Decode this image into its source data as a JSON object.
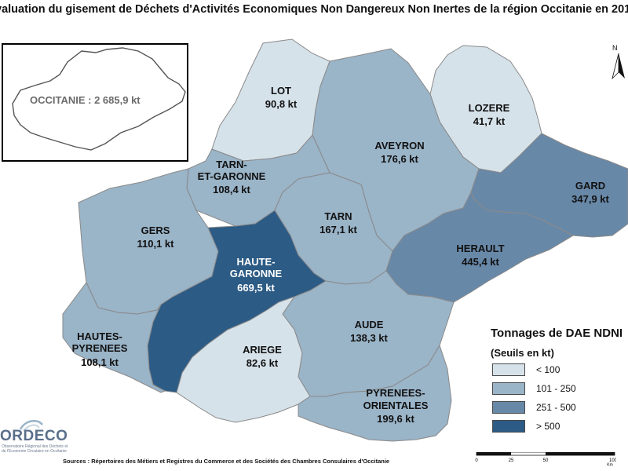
{
  "title": "valuation du gisement de Déchets d'Activités Economiques Non Dangereux Non Inertes de la région Occitanie en 201",
  "inset": {
    "label": "OCCITANIE : 2 685,9 kt"
  },
  "colors": {
    "lt100": "#d6e2ea",
    "r101_250": "#9ab4c8",
    "r251_500": "#6888a8",
    "gt500": "#2c5b85",
    "border": "#8a8a8a"
  },
  "departments": [
    {
      "name": "LOT",
      "value": "90,8 kt",
      "class": "lt100"
    },
    {
      "name": "LOZERE",
      "value": "41,7 kt",
      "class": "lt100"
    },
    {
      "name": "AVEYRON",
      "value": "176,6 kt",
      "class": "r101_250"
    },
    {
      "name_line1": "TARN-",
      "name_line2": "ET-GARONNE",
      "value": "108,4 kt",
      "class": "r101_250"
    },
    {
      "name": "GARD",
      "value": "347,9 kt",
      "class": "r251_500"
    },
    {
      "name": "GERS",
      "value": "110,1 kt",
      "class": "r101_250"
    },
    {
      "name": "TARN",
      "value": "167,1 kt",
      "class": "r101_250"
    },
    {
      "name_line1": "HAUTE-",
      "name_line2": "GARONNE",
      "value": "669,5 kt",
      "class": "gt500"
    },
    {
      "name": "HERAULT",
      "value": "445,4 kt",
      "class": "r251_500"
    },
    {
      "name": "AUDE",
      "value": "138,3 kt",
      "class": "r101_250"
    },
    {
      "name_line1": "HAUTES-",
      "name_line2": "PYRENEES",
      "value": "108,1 kt",
      "class": "r101_250"
    },
    {
      "name": "ARIEGE",
      "value": "82,6 kt",
      "class": "lt100"
    },
    {
      "name_line1": "PYRENEES-",
      "name_line2": "ORIENTALES",
      "value": "199,6 kt",
      "class": "r101_250"
    }
  ],
  "legend": {
    "title": "Tonnages de DAE NDNI",
    "subtitle": "(Seuils en kt)",
    "items": [
      {
        "label": "< 100",
        "class": "lt100"
      },
      {
        "label": "101 - 250",
        "class": "r101_250"
      },
      {
        "label": "251 - 500",
        "class": "r251_500"
      },
      {
        "label": "> 500",
        "class": "gt500"
      }
    ]
  },
  "north": "N",
  "scale": {
    "ticks": [
      "0",
      "25",
      "50",
      "100"
    ],
    "unit": "Km"
  },
  "sources": "Sources : Répertoires des Métiers et Registres du Commerce et des Sociétés des Chambres Consulaires d'Occitanie",
  "logo": {
    "text": "ORDECO",
    "subtitle": "Observatoire Régional des Déchets et de l'Economie Circulaire en Occitanie"
  }
}
